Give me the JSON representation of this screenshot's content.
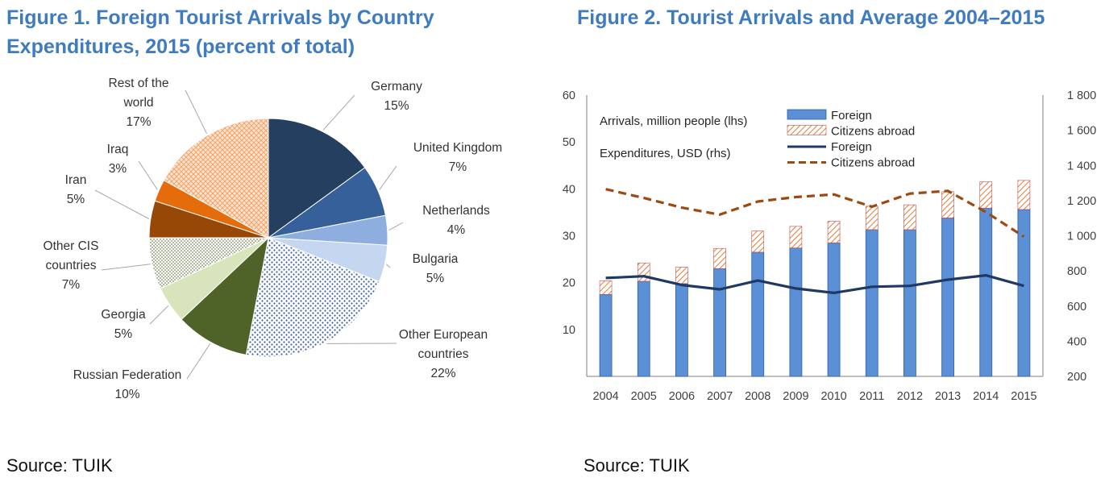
{
  "figure1": {
    "title_line1": "Figure 1. Foreign Tourist Arrivals by Country",
    "title_line2": "Expenditures, 2015 (percent of total)",
    "source": "Source: TUIK"
  },
  "figure2": {
    "title": "Figure 2. Tourist Arrivals and Average 2004–2015",
    "source": "Source: TUIK"
  },
  "colors": {
    "title": "#3f7bbf",
    "bar": "#5b8fd6",
    "bar_border": "#2f5fa3",
    "hatch": "#e07b39",
    "line_foreign": "#1f3864",
    "line_abroad": "#9c4a12"
  },
  "chart_data": [
    {
      "type": "pie",
      "title": "Foreign Tourist Arrivals by Country Expenditures, 2015 (percent of total)",
      "slices": [
        {
          "label": [
            "Germany"
          ],
          "pct_label": "15%",
          "value": 15,
          "color": "#243f60",
          "pattern": "solid"
        },
        {
          "label": [
            "United Kingdom"
          ],
          "pct_label": "7%",
          "value": 7,
          "color": "#35609a",
          "pattern": "solid"
        },
        {
          "label": [
            "Netherlands"
          ],
          "pct_label": "4%",
          "value": 4,
          "color": "#8faee0",
          "pattern": "solid"
        },
        {
          "label": [
            "Bulgaria"
          ],
          "pct_label": "5%",
          "value": 5,
          "color": "#c5d6f0",
          "pattern": "solid"
        },
        {
          "label": [
            "Other European",
            "countries"
          ],
          "pct_label": "22%",
          "value": 22,
          "color": "#3a5f9a",
          "pattern": "dots"
        },
        {
          "label": [
            "Russian Federation"
          ],
          "pct_label": "10%",
          "value": 10,
          "color": "#4f6228",
          "pattern": "solid"
        },
        {
          "label": [
            "Georgia"
          ],
          "pct_label": "5%",
          "value": 5,
          "color": "#d8e4bc",
          "pattern": "solid"
        },
        {
          "label": [
            "Other CIS",
            "countries"
          ],
          "pct_label": "7%",
          "value": 7,
          "color": "#4f6228",
          "pattern": "fine-dots"
        },
        {
          "label": [
            "Iran"
          ],
          "pct_label": "5%",
          "value": 5,
          "color": "#974706",
          "pattern": "solid"
        },
        {
          "label": [
            "Iraq"
          ],
          "pct_label": "3%",
          "value": 3,
          "color": "#e46c0a",
          "pattern": "solid"
        },
        {
          "label": [
            "Rest of the",
            "world"
          ],
          "pct_label": "17%",
          "value": 17,
          "color": "#f2a36b",
          "pattern": "crosshatch"
        }
      ]
    },
    {
      "type": "bar-line-combo",
      "title": "Tourist Arrivals and Average 2004–2015",
      "categories": [
        "2004",
        "2005",
        "2006",
        "2007",
        "2008",
        "2009",
        "2010",
        "2011",
        "2012",
        "2013",
        "2014",
        "2015"
      ],
      "left_axis": {
        "min": 0,
        "max": 60,
        "ticks": [
          10,
          20,
          30,
          40,
          50,
          60
        ],
        "tick_labels": [
          "10",
          "20",
          "30",
          "40",
          "50",
          "60"
        ]
      },
      "right_axis": {
        "min": 200,
        "max": 1800,
        "ticks": [
          200,
          400,
          600,
          800,
          1000,
          1200,
          1400,
          1600,
          1800
        ],
        "tick_labels": [
          "200",
          "400",
          "600",
          "800",
          "1 000",
          "1 200",
          "1 400",
          "1 600",
          "1 800"
        ]
      },
      "annotations": [
        "Arrivals, million people (lhs)",
        "Expenditures, USD (rhs)"
      ],
      "series": [
        {
          "name": "Foreign",
          "kind": "bar",
          "axis": "left",
          "stack": "arrivals",
          "values": [
            17.5,
            20.3,
            19.8,
            23.0,
            26.5,
            27.4,
            28.5,
            31.3,
            31.3,
            33.8,
            35.9,
            35.6
          ]
        },
        {
          "name": "Citizens abroad",
          "kind": "bar",
          "axis": "left",
          "stack": "arrivals",
          "pattern": "hatch",
          "values": [
            2.9,
            3.9,
            3.5,
            4.3,
            4.5,
            4.6,
            4.6,
            5.0,
            5.3,
            5.6,
            5.6,
            6.2
          ]
        },
        {
          "name": "Foreign",
          "kind": "line",
          "axis": "right",
          "style": "solid",
          "values": [
            760,
            770,
            720,
            695,
            745,
            700,
            675,
            710,
            715,
            750,
            775,
            715
          ]
        },
        {
          "name": "Citizens abroad",
          "kind": "line",
          "axis": "right",
          "style": "dashed",
          "values": [
            1265,
            1215,
            1160,
            1120,
            1195,
            1220,
            1235,
            1165,
            1240,
            1255,
            1135,
            995
          ]
        }
      ],
      "legend": [
        {
          "label": "Foreign",
          "marker": "bar"
        },
        {
          "label": "Citizens abroad",
          "marker": "hatched-bar"
        },
        {
          "label": "Foreign",
          "marker": "solid-line"
        },
        {
          "label": "Citizens abroad",
          "marker": "dashed-line"
        }
      ]
    }
  ]
}
